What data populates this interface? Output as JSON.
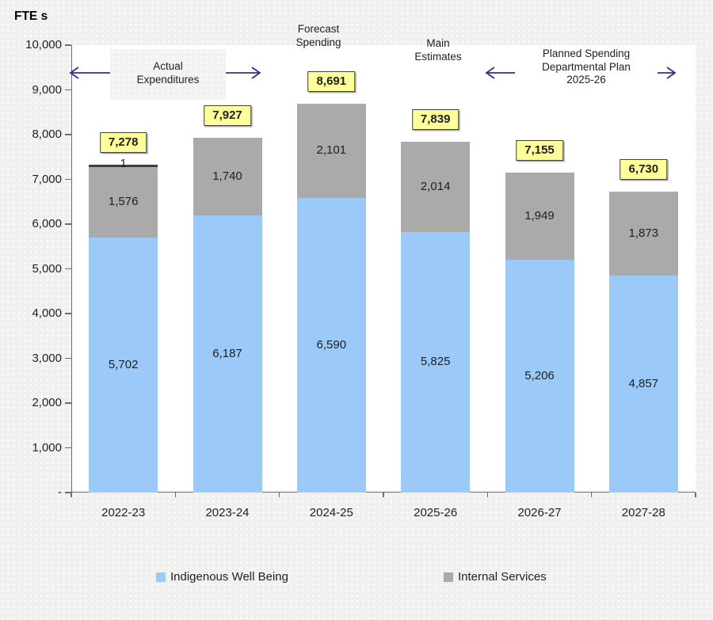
{
  "title": "FTE s",
  "annotations": {
    "actual": {
      "line1": "Actual",
      "line2": "Expenditures"
    },
    "forecast": {
      "line1": "Forecast",
      "line2": "Spending"
    },
    "main_estimates": {
      "line1": "Main",
      "line2": "Estimates"
    },
    "planned": {
      "line1": "Planned Spending",
      "line2": "Departmental Plan",
      "line3": "2025-26"
    },
    "arrow_color": "#2E3192"
  },
  "chart_data": {
    "type": "bar",
    "stacked": true,
    "title": "FTE s",
    "categories": [
      "2022-23",
      "2023-24",
      "2024-25",
      "2025-26",
      "2026-27",
      "2027-28"
    ],
    "series": [
      {
        "name": "Indigenous Well Being",
        "color": "#9BC9F8",
        "values": [
          5702,
          6187,
          6590,
          5825,
          5206,
          4857
        ],
        "labels": [
          "5,702",
          "6,187",
          "6,590",
          "5,825",
          "5,206",
          "4,857"
        ]
      },
      {
        "name": "Internal Services",
        "color": "#AAAAAA",
        "values": [
          1576,
          1740,
          2101,
          2014,
          1949,
          1873
        ],
        "labels": [
          "1,576",
          "1,740",
          "2,101",
          "2,014",
          "1,949",
          "1,873"
        ]
      }
    ],
    "extra_segment": {
      "category": "2022-23",
      "label": "1",
      "value": 1,
      "color": "#3f3f3f"
    },
    "totals": [
      7278,
      7927,
      8691,
      7839,
      7155,
      6730
    ],
    "total_labels": [
      "7,278",
      "7,927",
      "8,691",
      "7,839",
      "7,155",
      "6,730"
    ],
    "ylim": [
      0,
      10000
    ],
    "ytick_step": 1000,
    "yticks": [
      "-",
      "1,000",
      "2,000",
      "3,000",
      "4,000",
      "5,000",
      "6,000",
      "7,000",
      "8,000",
      "9,000",
      "10,000"
    ],
    "grid": false,
    "legend_position": "bottom"
  },
  "legend": [
    {
      "label": "Indigenous Well Being",
      "color": "#9BC9F8"
    },
    {
      "label": "Internal Services",
      "color": "#AAAAAA"
    }
  ],
  "colors": {
    "page_background": "#F0F0EF",
    "plot_background": "#FFFFFF",
    "total_box_background": "#FFFF99",
    "total_box_border": "#404040",
    "axis": "#6E6E6E",
    "text": "#1F1F1F"
  }
}
